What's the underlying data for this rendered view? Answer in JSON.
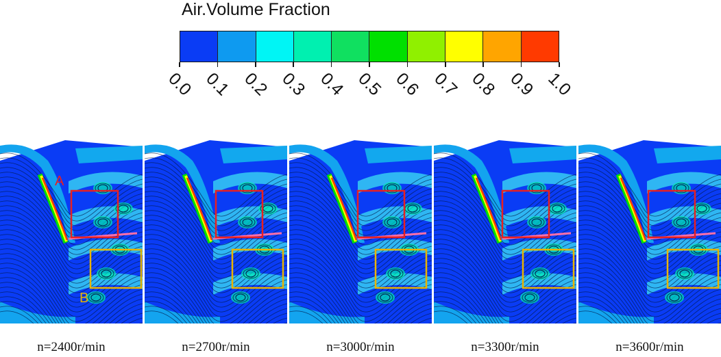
{
  "legend": {
    "title": "Air.Volume Fraction",
    "ticks": [
      "0.0",
      "0.1",
      "0.2",
      "0.3",
      "0.4",
      "0.5",
      "0.6",
      "0.7",
      "0.8",
      "0.9",
      "1.0"
    ],
    "colors": [
      "#0a3cf5",
      "#0e9af0",
      "#00f5f5",
      "#00f0b0",
      "#10e060",
      "#00e000",
      "#90f000",
      "#ffff00",
      "#ffa500",
      "#ff3a00"
    ]
  },
  "panels": [
    {
      "caption": "n=2400r/min"
    },
    {
      "caption": "n=2700r/min"
    },
    {
      "caption": "n=3000r/min"
    },
    {
      "caption": "n=3300r/min"
    },
    {
      "caption": "n=3600r/min"
    }
  ],
  "markers": {
    "a_label": "A",
    "b_label": "B",
    "a_color": "#e82020",
    "b_color": "#e8b400"
  }
}
